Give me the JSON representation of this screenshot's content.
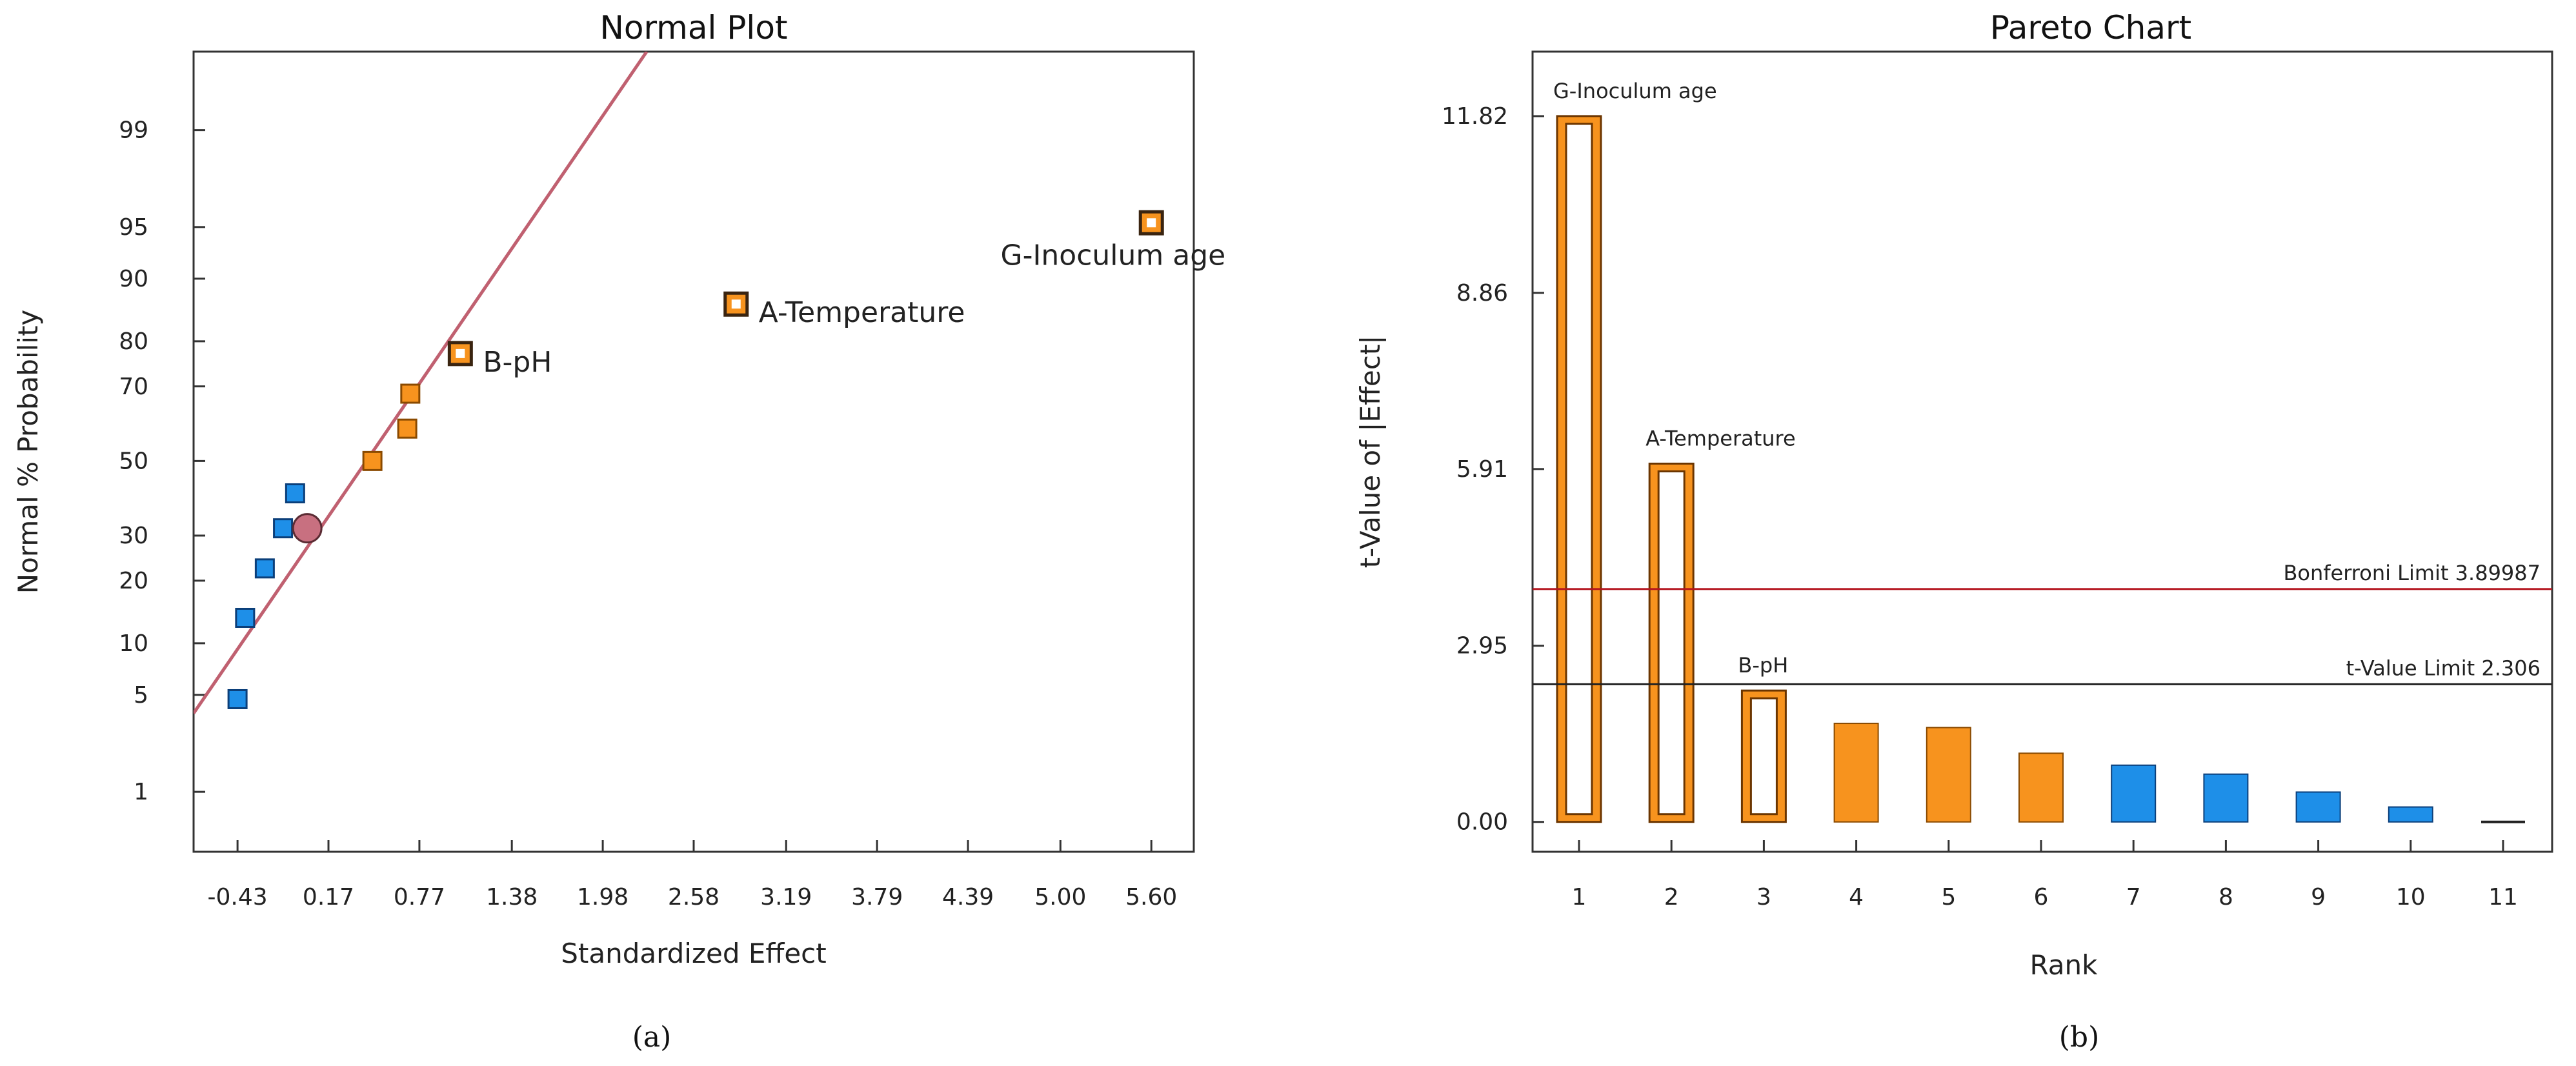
{
  "colors": {
    "orange": "#f7931e",
    "orange_stroke": "#8a4a00",
    "blue": "#1e8fe8",
    "blue_stroke": "#0b3f7a",
    "center_marker": "#c87080",
    "fit_line": "#c06070",
    "bonferroni_line": "#b4141e",
    "tvalue_line": "#222222"
  },
  "chart_data": [
    {
      "type": "scatter",
      "title": "Normal Plot",
      "xlabel": "Standardized Effect",
      "ylabel": "Normal % Probability",
      "caption": "(a)",
      "x_ticks": [
        "-0.43",
        "0.17",
        "0.77",
        "1.38",
        "1.98",
        "2.58",
        "3.19",
        "3.79",
        "4.39",
        "5.00",
        "5.60"
      ],
      "y_ticks": [
        "1",
        "5",
        "10",
        "20",
        "30",
        "50",
        "70",
        "80",
        "90",
        "95",
        "99"
      ],
      "xlim": [
        -0.72,
        5.88
      ],
      "ylim": [
        0.3,
        99.8
      ],
      "fit_line": {
        "x": [
          -0.72,
          2.27
        ],
        "y": [
          3.8,
          99.8
        ]
      },
      "points": [
        {
          "x": -0.43,
          "y": 4.7,
          "color": "blue",
          "label": ""
        },
        {
          "x": -0.38,
          "y": 13.5,
          "color": "blue",
          "label": ""
        },
        {
          "x": -0.25,
          "y": 22.5,
          "color": "blue",
          "label": ""
        },
        {
          "x": -0.13,
          "y": 31.8,
          "color": "blue",
          "label": ""
        },
        {
          "x": -0.05,
          "y": 41.0,
          "color": "blue",
          "label": ""
        },
        {
          "x": 0.46,
          "y": 50.0,
          "color": "orange",
          "label": ""
        },
        {
          "x": 0.69,
          "y": 59.0,
          "color": "orange",
          "label": ""
        },
        {
          "x": 0.71,
          "y": 68.2,
          "color": "orange",
          "label": ""
        },
        {
          "x": 1.04,
          "y": 77.5,
          "color": "orange",
          "label": "B-pH",
          "open": true
        },
        {
          "x": 2.86,
          "y": 86.5,
          "color": "orange",
          "label": "A-Temperature",
          "open": true
        },
        {
          "x": 5.6,
          "y": 95.3,
          "color": "orange",
          "label": "G-Inoculum age",
          "open": true
        }
      ],
      "center_point": {
        "x": 0.03,
        "y": 31.8
      }
    },
    {
      "type": "bar",
      "title": "Pareto Chart",
      "xlabel": "Rank",
      "ylabel": "t-Value of |Effect|",
      "caption": "(b)",
      "categories": [
        "1",
        "2",
        "3",
        "4",
        "5",
        "6",
        "7",
        "8",
        "9",
        "10",
        "11"
      ],
      "values": [
        11.82,
        6.0,
        2.2,
        1.65,
        1.58,
        1.15,
        0.95,
        0.8,
        0.5,
        0.25,
        0.02
      ],
      "colors": [
        "orange",
        "orange",
        "orange",
        "orange",
        "orange",
        "orange",
        "blue",
        "blue",
        "blue",
        "blue",
        "blue"
      ],
      "open": [
        true,
        true,
        true,
        false,
        false,
        false,
        false,
        false,
        false,
        false,
        false
      ],
      "bar_labels": [
        "G-Inoculum age",
        "A-Temperature",
        "B-pH",
        "",
        "",
        "",
        "",
        "",
        "",
        "",
        ""
      ],
      "y_ticks": [
        0.0,
        2.95,
        5.91,
        8.86,
        11.82
      ],
      "y_tick_labels": [
        "0.00",
        "2.95",
        "5.91",
        "8.86",
        "11.82"
      ],
      "ylim": [
        -0.5,
        12.9
      ],
      "limits": [
        {
          "name": "Bonferroni Limit 3.89987",
          "value": 3.89987,
          "color": "bonferroni_line"
        },
        {
          "name": "t-Value Limit 2.306",
          "value": 2.306,
          "color": "tvalue_line"
        }
      ]
    }
  ]
}
